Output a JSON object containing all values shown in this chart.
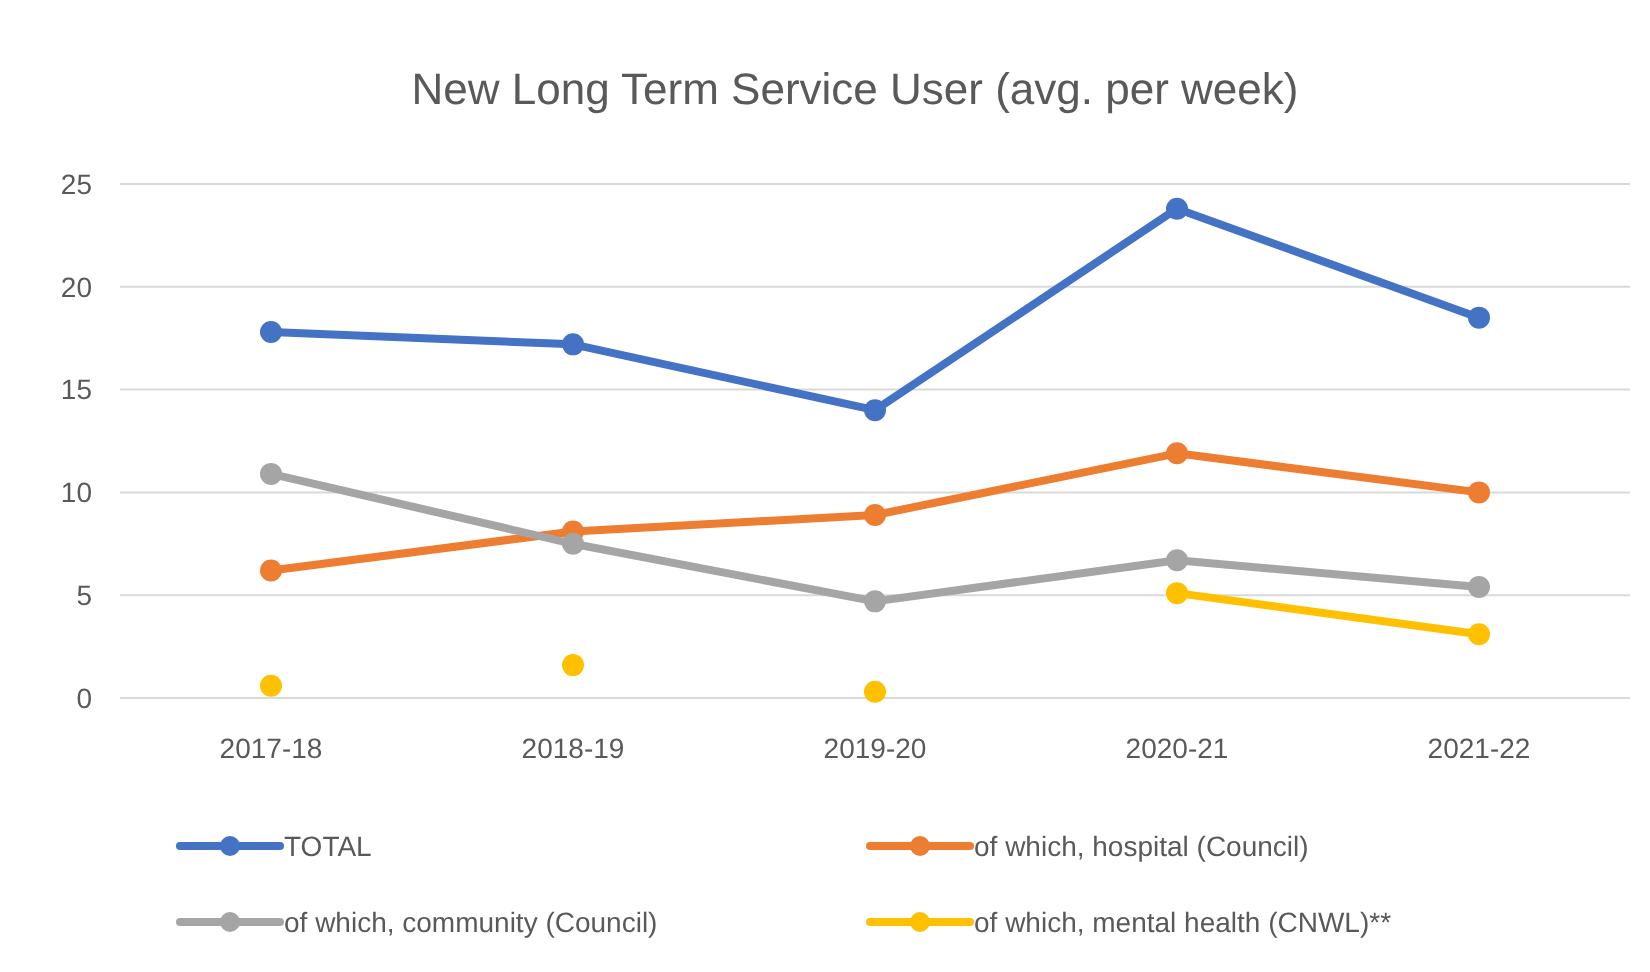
{
  "chart_data": {
    "type": "line",
    "title": "New Long Term Service User (avg. per week)",
    "categories": [
      "2017-18",
      "2018-19",
      "2019-20",
      "2020-21",
      "2021-22"
    ],
    "series": [
      {
        "name": "TOTAL",
        "color": "#4472c4",
        "values": [
          17.8,
          17.2,
          14.0,
          23.8,
          18.5
        ]
      },
      {
        "name": "of which, hospital (Council)",
        "color": "#ed7d31",
        "values": [
          6.2,
          8.1,
          8.9,
          11.9,
          10.0
        ]
      },
      {
        "name": "of which, community (Council)",
        "color": "#a5a5a5",
        "values": [
          10.9,
          7.5,
          4.7,
          6.7,
          5.4
        ]
      },
      {
        "name": "of which, mental health (CNWL)**",
        "type": "scatter",
        "color": "#ffc000",
        "values": [
          0.6,
          1.6,
          0.3,
          null,
          null
        ]
      },
      {
        "type": "line",
        "color": "#ffc000",
        "values": [
          null,
          null,
          null,
          5.1,
          3.1
        ]
      }
    ],
    "ylim": [
      0,
      25
    ],
    "yticks": [
      0,
      5,
      10,
      15,
      20,
      25
    ],
    "grid": "y",
    "marker": "circle",
    "line_style": "solid",
    "legend": "bottom"
  }
}
